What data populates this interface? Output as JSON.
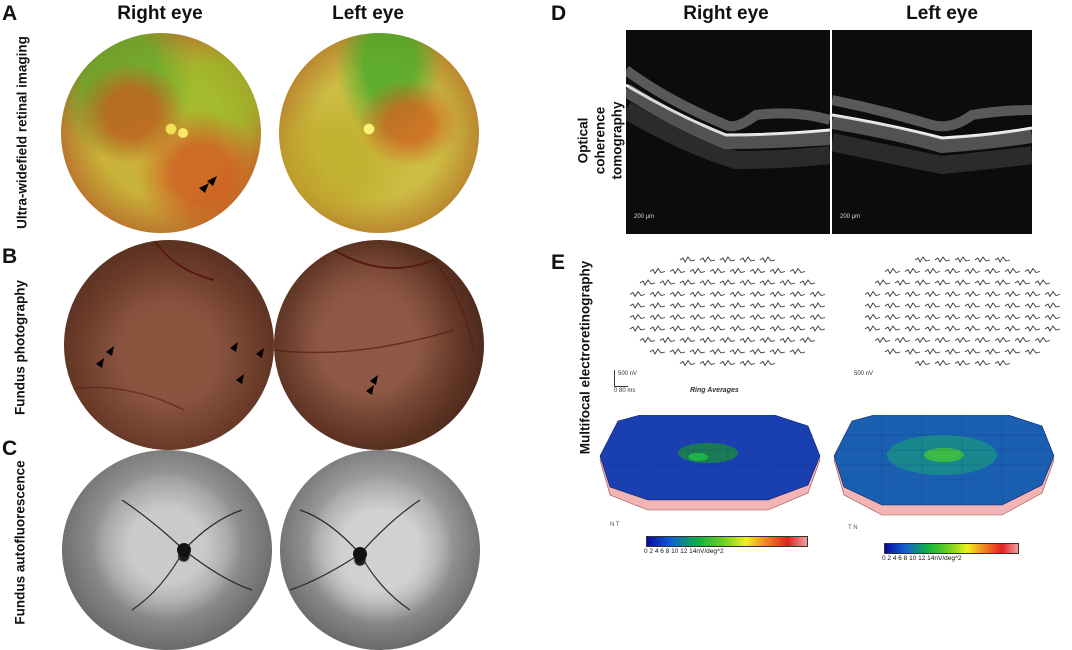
{
  "panels": {
    "A": {
      "letter": "A",
      "label": "Ultra-widefield retinal imaging"
    },
    "B": {
      "letter": "B",
      "label": "Fundus photography"
    },
    "C": {
      "letter": "C",
      "label": "Fundus autofluorescence"
    },
    "D": {
      "letter": "D",
      "label_line1": "Optical coherence",
      "label_line2": "tomography",
      "scale_right": "200 µm",
      "scale_left": "200 µm"
    },
    "E": {
      "letter": "E",
      "label": "Multifocal electroretinography",
      "ring_averages": "Ring Averages",
      "scale_right_nv": "500 nV",
      "scale_right_ms": "0    80 ms",
      "scale_left_nv": "500 nV",
      "orient_right": "N   T",
      "orient_left": "T   N",
      "colorbar_ticks": "0    2    4    6    8    10    12    14nV/deg^2"
    }
  },
  "column_headers": {
    "right_eye": "Right eye",
    "left_eye": "Left eye"
  },
  "colors": {
    "arrow": "#000000",
    "oct_bg": "#0c0c0c",
    "mesh_blue": "#1a3fb0",
    "mesh_side": "#f0b0b0"
  }
}
